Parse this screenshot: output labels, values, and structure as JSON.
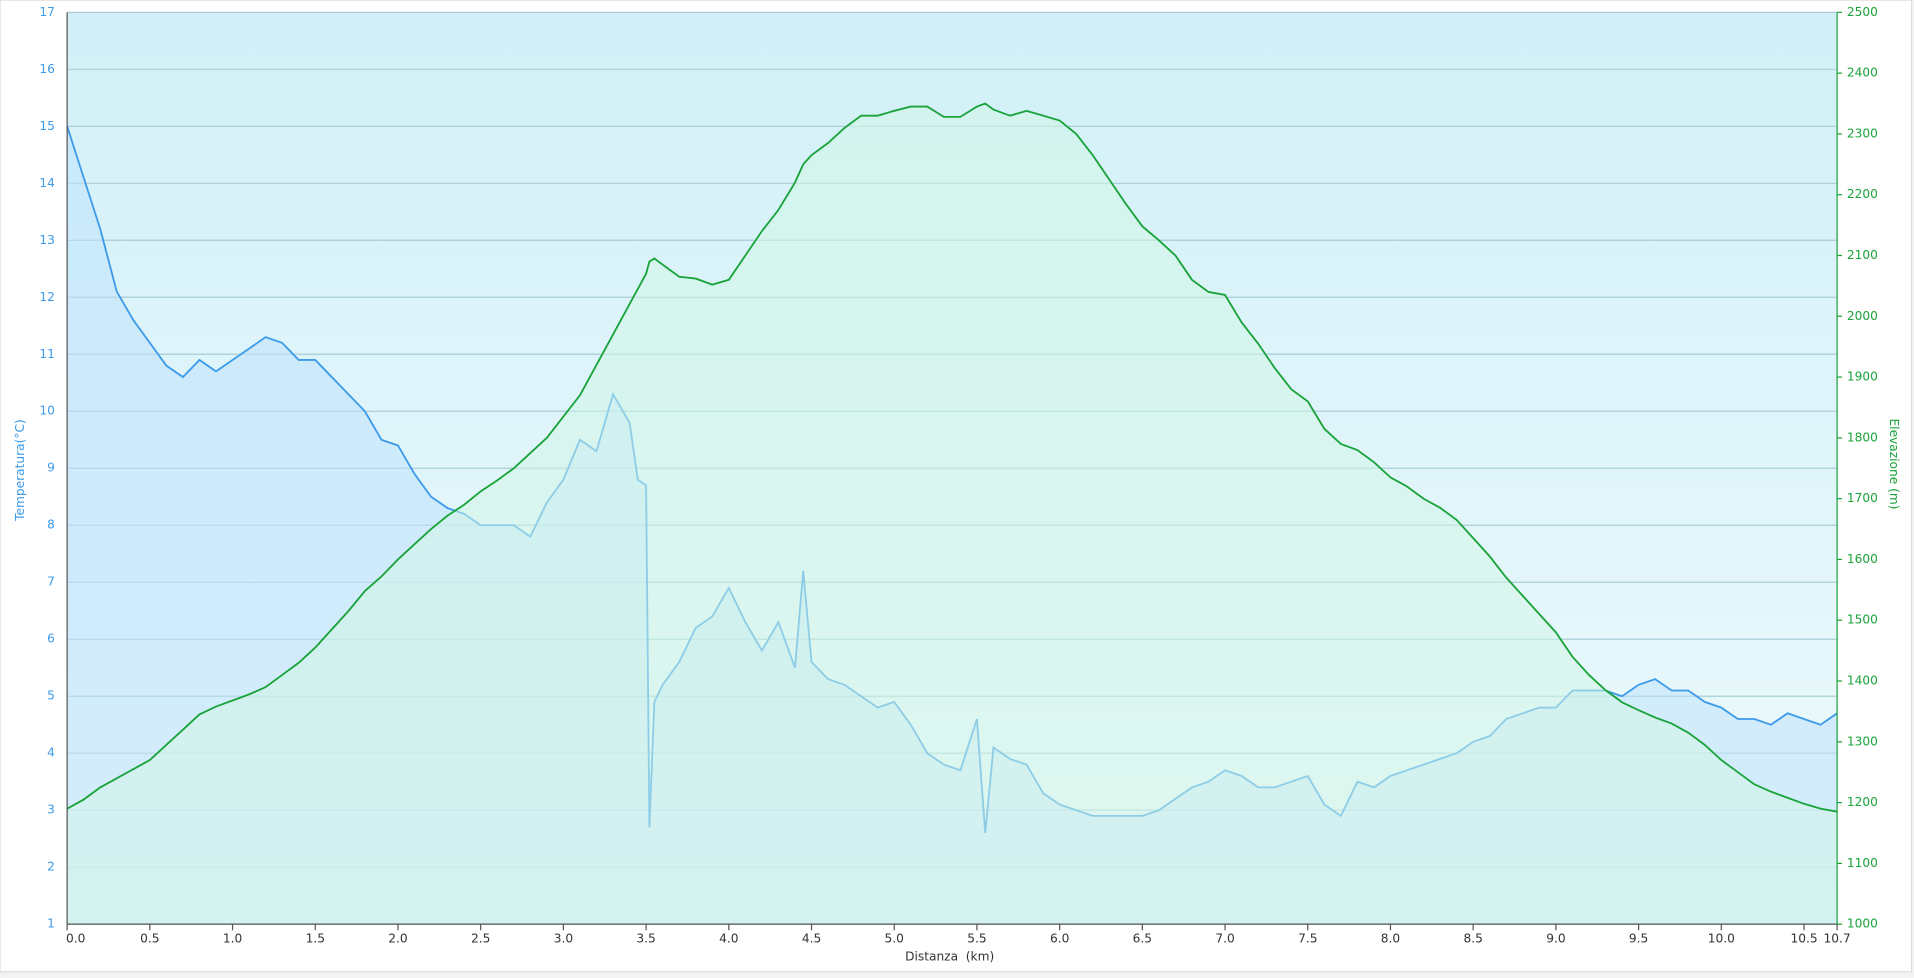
{
  "chart_data": {
    "type": "line",
    "xlabel": "Distanza  (km)",
    "ylabel": "Temperatura(°C)",
    "y2label": "Elevazione (m)",
    "xlim": [
      0,
      10.7
    ],
    "xticks": [
      {
        "value": 0,
        "label": "0.0"
      },
      0.5,
      {
        "value": 1,
        "label": "1.0"
      },
      1.5,
      {
        "value": 2,
        "label": "2.0"
      },
      2.5,
      {
        "value": 3,
        "label": "3.0"
      },
      3.5,
      {
        "value": 4,
        "label": "4.0"
      },
      4.5,
      {
        "value": 5,
        "label": "5.0"
      },
      5.5,
      {
        "value": 6,
        "label": "6.0"
      },
      6.5,
      {
        "value": 7,
        "label": "7.0"
      },
      7.5,
      {
        "value": 8,
        "label": "8.0"
      },
      8.5,
      {
        "value": 9,
        "label": "9.0"
      },
      9.5,
      {
        "value": 10,
        "label": "10.0"
      },
      10.5,
      10.7
    ],
    "ylim": [
      1,
      17
    ],
    "yticks": [
      1,
      2,
      3,
      4,
      5,
      6,
      7,
      8,
      9,
      10,
      11,
      12,
      13,
      14,
      15,
      16,
      17
    ],
    "y2lim": [
      1000,
      2500
    ],
    "y2ticks": [
      1000,
      1100,
      1200,
      1300,
      1400,
      1500,
      1600,
      1700,
      1800,
      1900,
      2000,
      2100,
      2200,
      2300,
      2400,
      2500
    ],
    "grid": true,
    "x": [
      0,
      0.1,
      0.2,
      0.3,
      0.4,
      0.5,
      0.6,
      0.7,
      0.8,
      0.9,
      1,
      1.1,
      1.2,
      1.3,
      1.4,
      1.5,
      1.6,
      1.7,
      1.8,
      1.9,
      2,
      2.1,
      2.2,
      2.3,
      2.4,
      2.5,
      2.6,
      2.7,
      2.8,
      2.9,
      3,
      3.1,
      3.2,
      3.3,
      3.4,
      3.45,
      3.5,
      3.52,
      3.55,
      3.6,
      3.7,
      3.8,
      3.9,
      4,
      4.1,
      4.2,
      4.3,
      4.4,
      4.45,
      4.5,
      4.6,
      4.7,
      4.8,
      4.9,
      5,
      5.1,
      5.2,
      5.3,
      5.4,
      5.5,
      5.55,
      5.6,
      5.7,
      5.8,
      5.9,
      6,
      6.1,
      6.2,
      6.3,
      6.4,
      6.5,
      6.6,
      6.7,
      6.8,
      6.9,
      7,
      7.1,
      7.2,
      7.3,
      7.4,
      7.5,
      7.6,
      7.7,
      7.8,
      7.9,
      8,
      8.1,
      8.2,
      8.3,
      8.4,
      8.5,
      8.6,
      8.7,
      8.8,
      8.9,
      9,
      9.1,
      9.2,
      9.3,
      9.4,
      9.5,
      9.6,
      9.7,
      9.8,
      9.9,
      10,
      10.1,
      10.2,
      10.3,
      10.4,
      10.5,
      10.6,
      10.7
    ],
    "series": [
      {
        "color": "#3d9be9",
        "fill": "#bfe2fb",
        "values": [
          15.0,
          14.1,
          13.2,
          12.1,
          11.6,
          11.2,
          10.8,
          10.6,
          10.9,
          10.7,
          10.9,
          11.1,
          11.3,
          11.2,
          10.9,
          10.9,
          10.6,
          10.3,
          10.0,
          9.5,
          9.4,
          8.9,
          8.5,
          8.3,
          8.2,
          8.0,
          8.0,
          8.0,
          7.8,
          8.4,
          8.8,
          9.5,
          9.3,
          10.3,
          9.8,
          8.8,
          8.7,
          2.7,
          4.9,
          5.2,
          5.6,
          6.2,
          6.4,
          6.9,
          6.3,
          5.8,
          6.3,
          5.5,
          7.2,
          5.6,
          5.3,
          5.2,
          5.0,
          4.8,
          4.9,
          4.5,
          4.0,
          3.8,
          3.7,
          4.6,
          2.6,
          4.1,
          3.9,
          3.8,
          3.3,
          3.1,
          3.0,
          2.9,
          2.9,
          2.9,
          2.9,
          3.0,
          3.2,
          3.4,
          3.5,
          3.7,
          3.6,
          3.4,
          3.4,
          3.5,
          3.6,
          3.1,
          2.9,
          3.5,
          3.4,
          3.6,
          3.7,
          3.8,
          3.9,
          4.0,
          4.2,
          4.3,
          4.6,
          4.7,
          4.8,
          4.8,
          5.1,
          5.1,
          5.1,
          5.0,
          5.2,
          5.3,
          5.1,
          5.1,
          4.9,
          4.8,
          4.6,
          4.6,
          4.5,
          4.7,
          4.6,
          4.5,
          4.7
        ]
      },
      {
        "color": "#1aa33a",
        "fill": "#d2f5e6",
        "axis": "y2",
        "values": [
          1190,
          1205,
          1225,
          1240,
          1255,
          1270,
          1295,
          1320,
          1345,
          1358,
          1368,
          1378,
          1390,
          1410,
          1430,
          1455,
          1485,
          1515,
          1548,
          1572,
          1600,
          1625,
          1650,
          1672,
          1690,
          1712,
          1730,
          1750,
          1775,
          1800,
          1835,
          1870,
          1920,
          1970,
          2020,
          2045,
          2070,
          2090,
          2095,
          2085,
          2065,
          2062,
          2052,
          2060,
          2100,
          2140,
          2175,
          2220,
          2250,
          2265,
          2285,
          2310,
          2330,
          2330,
          2338,
          2345,
          2345,
          2328,
          2328,
          2345,
          2350,
          2340,
          2330,
          2338,
          2330,
          2322,
          2300,
          2265,
          2225,
          2185,
          2148,
          2125,
          2100,
          2060,
          2040,
          2035,
          1990,
          1955,
          1915,
          1880,
          1860,
          1815,
          1790,
          1780,
          1760,
          1735,
          1720,
          1700,
          1685,
          1665,
          1635,
          1605,
          1570,
          1540,
          1510,
          1480,
          1440,
          1410,
          1385,
          1365,
          1352,
          1340,
          1330,
          1315,
          1295,
          1270,
          1250,
          1230,
          1218,
          1208,
          1198,
          1190,
          1185
        ]
      }
    ]
  }
}
